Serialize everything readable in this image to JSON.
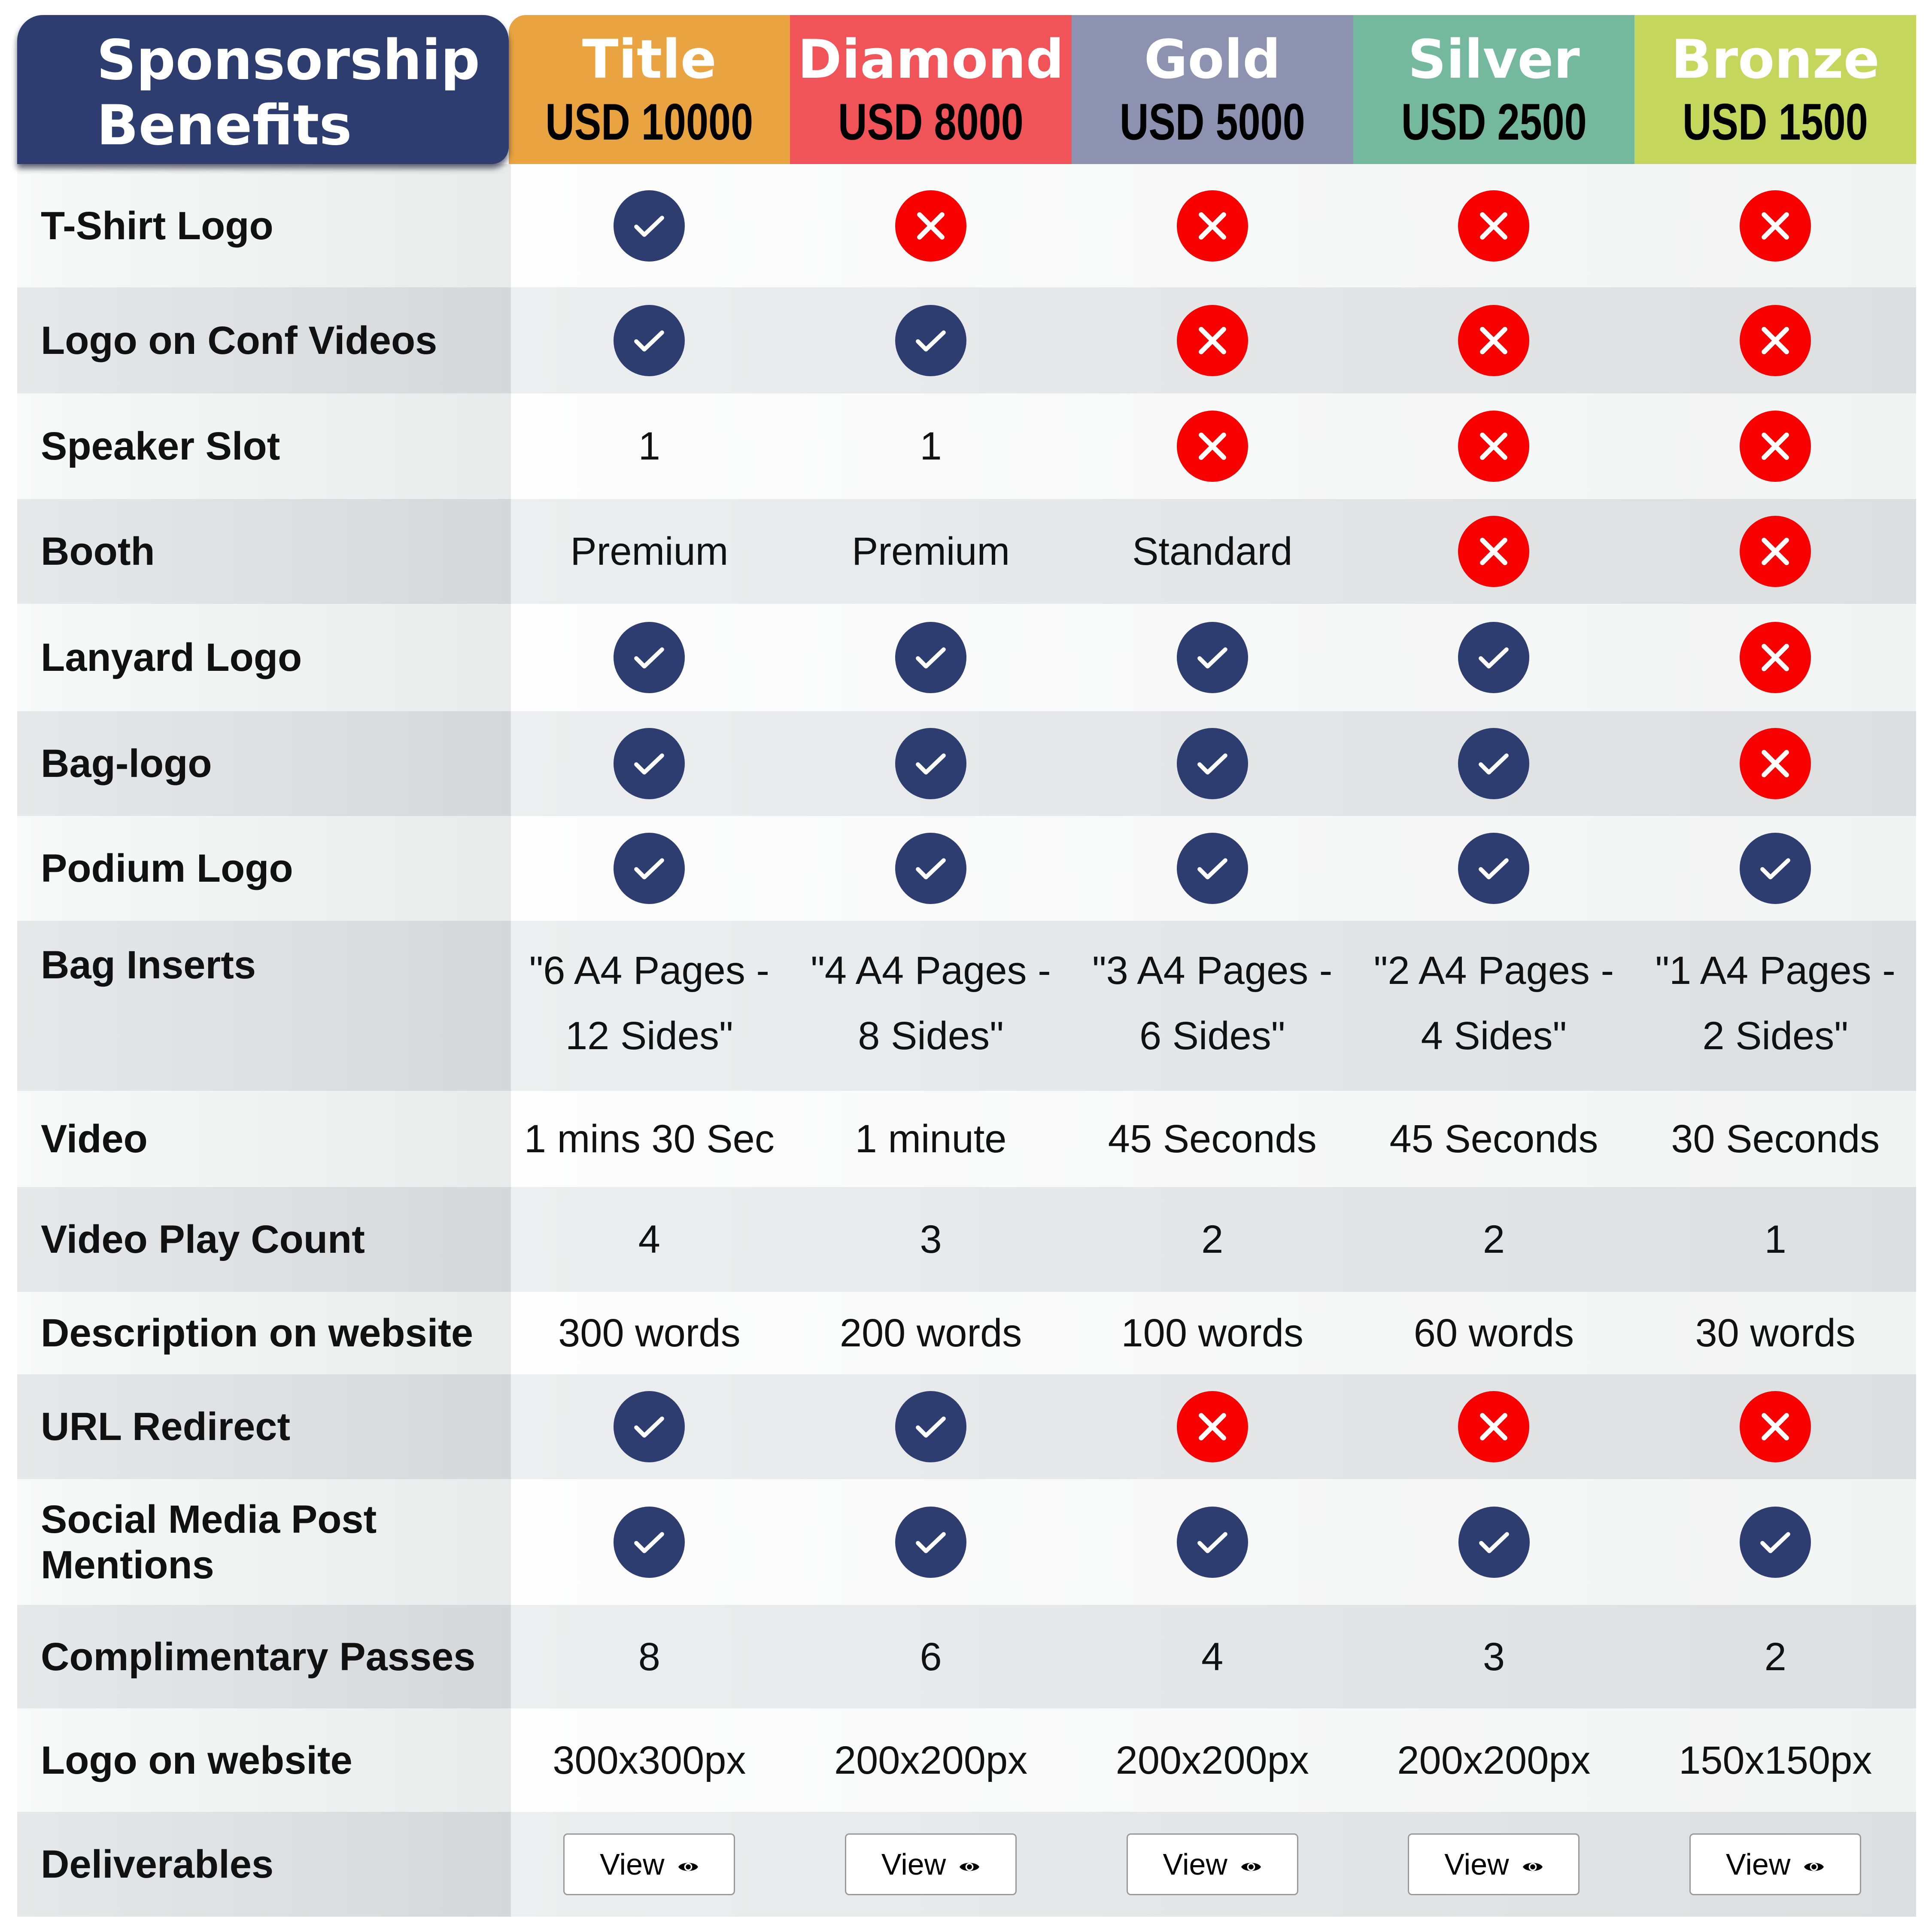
{
  "header": {
    "title_line1": "Sponsorship",
    "title_line2": "Benefits",
    "tiers": [
      {
        "name": "Title",
        "price": "USD 10000",
        "color": "#e9a441"
      },
      {
        "name": "Diamond",
        "price": "USD 8000",
        "color": "#f05458"
      },
      {
        "name": "Gold",
        "price": "USD 5000",
        "color": "#8c92b0"
      },
      {
        "name": "Silver",
        "price": "USD 2500",
        "color": "#74b89e"
      },
      {
        "name": "Bronze",
        "price": "USD 1500",
        "color": "#c5d65c"
      }
    ]
  },
  "icons": {
    "check": "check-icon",
    "cross": "cross-icon",
    "view": "eye-icon"
  },
  "rows": [
    {
      "label": "T-Shirt Logo",
      "cells": [
        "check",
        "cross",
        "cross",
        "cross",
        "cross"
      ]
    },
    {
      "label": "Logo on Conf Videos",
      "cells": [
        "check",
        "check",
        "cross",
        "cross",
        "cross"
      ]
    },
    {
      "label": "Speaker Slot",
      "cells": [
        "1",
        "1",
        "cross",
        "cross",
        "cross"
      ]
    },
    {
      "label": "Booth",
      "cells": [
        "Premium",
        "Premium",
        "Standard",
        "cross",
        "cross"
      ]
    },
    {
      "label": "Lanyard Logo",
      "cells": [
        "check",
        "check",
        "check",
        "check",
        "cross"
      ]
    },
    {
      "label": "Bag-logo",
      "cells": [
        "check",
        "check",
        "check",
        "check",
        "cross"
      ]
    },
    {
      "label": "Podium Logo",
      "cells": [
        "check",
        "check",
        "check",
        "check",
        "check"
      ]
    },
    {
      "label": "Bag Inserts",
      "cells": [
        "\"6 A4 Pages - 12 Sides\"",
        "\"4 A4 Pages - 8 Sides\"",
        "\"3 A4 Pages - 6 Sides\"",
        "\"2 A4 Pages - 4 Sides\"",
        "\"1 A4 Pages - 2 Sides\""
      ]
    },
    {
      "label": "Video",
      "cells": [
        "1 mins 30 Sec",
        "1 minute",
        "45 Seconds",
        "45 Seconds",
        "30 Seconds"
      ]
    },
    {
      "label": "Video Play Count",
      "cells": [
        "4",
        "3",
        "2",
        "2",
        "1"
      ]
    },
    {
      "label": "Description on website",
      "cells": [
        "300 words",
        "200 words",
        "100 words",
        "60 words",
        "30 words"
      ]
    },
    {
      "label": "URL Redirect",
      "cells": [
        "check",
        "check",
        "cross",
        "cross",
        "cross"
      ]
    },
    {
      "label": "Social Media Post Mentions",
      "cells": [
        "check",
        "check",
        "check",
        "check",
        "check"
      ]
    },
    {
      "label": "Complimentary Passes",
      "cells": [
        "8",
        "6",
        "4",
        "3",
        "2"
      ]
    },
    {
      "label": "Logo on website",
      "cells": [
        "300x300px",
        "200x200px",
        "200x200px",
        "200x200px",
        "150x150px"
      ]
    },
    {
      "label": "Deliverables",
      "cells": [
        "View",
        "View",
        "View",
        "View",
        "View"
      ]
    }
  ]
}
